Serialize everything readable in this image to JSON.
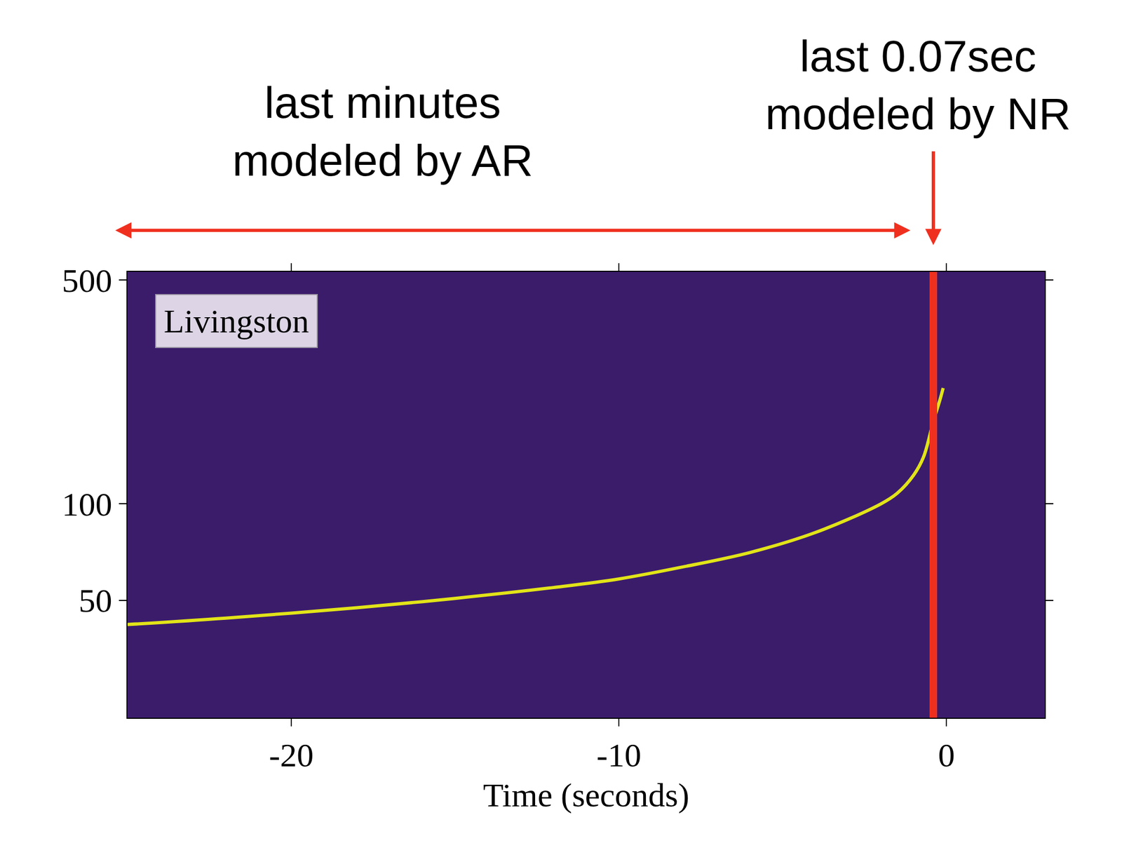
{
  "chart_data": {
    "type": "line",
    "x_label": "Time (seconds)",
    "log": "y",
    "grid": false,
    "xlim": [
      -25,
      3
    ],
    "xticks": [
      -20,
      -10,
      0
    ],
    "ylim": [
      21.5,
      530
    ],
    "yticks": [
      50,
      100,
      500
    ],
    "series": [
      {
        "color": "#e2e418",
        "x": [
          -25,
          -22,
          -18,
          -15,
          -12,
          -10,
          -8,
          -6,
          -4,
          -2,
          -1.5,
          -1,
          -0.7,
          -0.4,
          -0.2,
          -0.1
        ],
        "values": [
          42,
          44,
          47.4,
          50.7,
          54.8,
          58.3,
          63.7,
          70.5,
          81.4,
          100,
          108,
          123,
          140,
          181,
          211,
          230
        ]
      }
    ],
    "annotations": [
      {
        "text": "last minutes\nmodeled by AR",
        "x": [
          -25.4,
          -1.1
        ]
      },
      {
        "text": "last 0.07sec\nmodeled by NR",
        "x": -0.4
      },
      {
        "text": "Livingston"
      }
    ]
  }
}
